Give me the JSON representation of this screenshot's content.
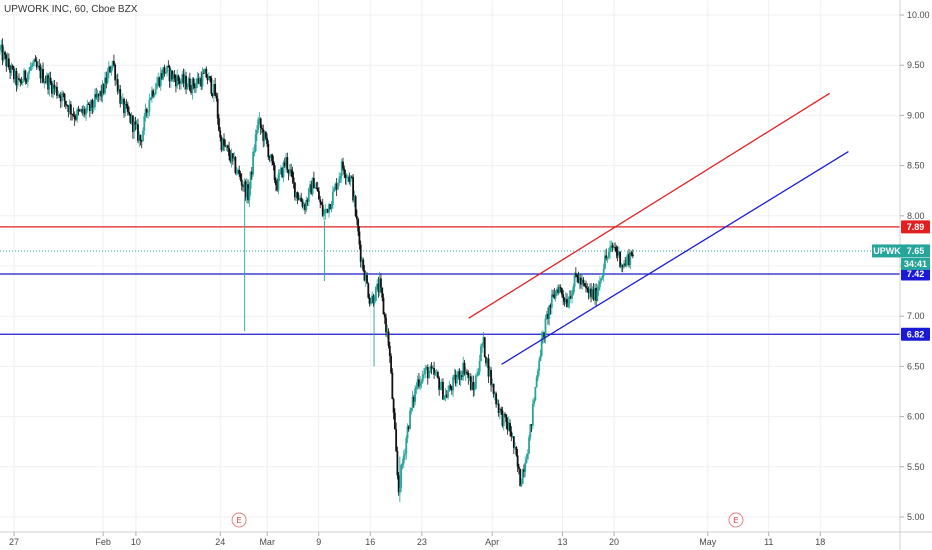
{
  "chart_data": {
    "type": "candlestick",
    "title": "UPWORK INC, 60, Cboe BZX",
    "symbol": "UPWK",
    "last_price": "7.65",
    "countdown": "34:41",
    "ylim": [
      4.85,
      10.15
    ],
    "y_ticks": [
      "5.00",
      "5.50",
      "6.00",
      "6.50",
      "7.00",
      "7.50",
      "8.00",
      "8.50",
      "9.00",
      "9.50",
      "10.00"
    ],
    "x_ticks": [
      {
        "label": "27",
        "x": 0
      },
      {
        "label": "Feb",
        "x": 19
      },
      {
        "label": "10",
        "x": 26
      },
      {
        "label": "24",
        "x": 44
      },
      {
        "label": "Mar",
        "x": 54
      },
      {
        "label": "9",
        "x": 65
      },
      {
        "label": "16",
        "x": 76
      },
      {
        "label": "23",
        "x": 87
      },
      {
        "label": "Apr",
        "x": 102
      },
      {
        "label": "13",
        "x": 117
      },
      {
        "label": "20",
        "x": 128
      },
      {
        "label": "May",
        "x": 148
      },
      {
        "label": "11",
        "x": 161
      },
      {
        "label": "18",
        "x": 172
      }
    ],
    "x_range": [
      -3,
      189
    ],
    "horizontal_lines": [
      {
        "value": 7.89,
        "label": "7.89",
        "color": "#e02020"
      },
      {
        "value": 7.42,
        "label": "7.42",
        "color": "#1a1ad6"
      },
      {
        "value": 6.82,
        "label": "6.82",
        "color": "#1a1ad6"
      }
    ],
    "trend_lines": [
      {
        "color": "#e02020",
        "x1": 97,
        "y1": 6.98,
        "x2": 174,
        "y2": 9.22
      },
      {
        "color": "#1a1ad6",
        "x1": 104,
        "y1": 6.52,
        "x2": 178,
        "y2": 8.64
      }
    ],
    "earnings_markers": [
      {
        "label": "E",
        "x": 48
      },
      {
        "label": "E",
        "x": 154
      }
    ],
    "price_path": [
      [
        -3,
        9.65
      ],
      [
        1,
        9.3
      ],
      [
        4,
        9.5
      ],
      [
        7,
        9.35
      ],
      [
        10,
        9.2
      ],
      [
        13,
        9.0
      ],
      [
        16,
        9.05
      ],
      [
        19,
        9.25
      ],
      [
        21,
        9.55
      ],
      [
        23,
        9.1
      ],
      [
        25,
        8.95
      ],
      [
        27,
        8.75
      ],
      [
        29,
        9.2
      ],
      [
        32,
        9.45
      ],
      [
        35,
        9.35
      ],
      [
        38,
        9.3
      ],
      [
        41,
        9.4
      ],
      [
        43,
        9.2
      ],
      [
        44,
        8.75
      ],
      [
        46,
        8.6
      ],
      [
        48,
        8.4
      ],
      [
        50,
        8.2
      ],
      [
        52,
        8.95
      ],
      [
        54,
        8.7
      ],
      [
        56,
        8.3
      ],
      [
        58,
        8.55
      ],
      [
        60,
        8.25
      ],
      [
        62,
        8.1
      ],
      [
        64,
        8.35
      ],
      [
        66,
        8.0
      ],
      [
        68,
        8.2
      ],
      [
        70,
        8.5
      ],
      [
        72,
        8.35
      ],
      [
        74,
        7.6
      ],
      [
        76,
        7.15
      ],
      [
        78,
        7.3
      ],
      [
        80,
        6.7
      ],
      [
        82,
        5.25
      ],
      [
        84,
        5.9
      ],
      [
        86,
        6.35
      ],
      [
        88,
        6.45
      ],
      [
        90,
        6.4
      ],
      [
        92,
        6.2
      ],
      [
        94,
        6.35
      ],
      [
        96,
        6.5
      ],
      [
        98,
        6.25
      ],
      [
        100,
        6.75
      ],
      [
        102,
        6.3
      ],
      [
        104,
        6.0
      ],
      [
        106,
        5.85
      ],
      [
        108,
        5.35
      ],
      [
        110,
        5.8
      ],
      [
        112,
        6.6
      ],
      [
        114,
        7.05
      ],
      [
        116,
        7.3
      ],
      [
        118,
        7.15
      ],
      [
        120,
        7.4
      ],
      [
        122,
        7.25
      ],
      [
        124,
        7.2
      ],
      [
        126,
        7.55
      ],
      [
        128,
        7.7
      ],
      [
        130,
        7.5
      ],
      [
        132,
        7.65
      ]
    ]
  }
}
